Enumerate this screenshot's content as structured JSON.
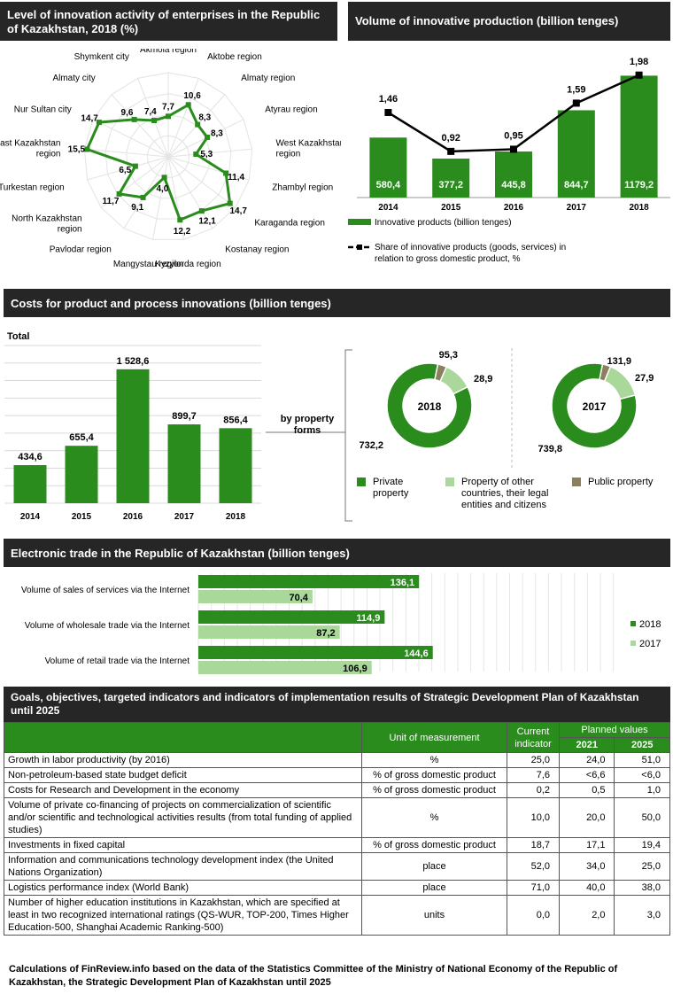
{
  "headers": {
    "innovation_activity": "Level of innovation activity of enterprises  in the Republic of Kazakhstan, 2018 (%)",
    "innovative_production": "Volume of innovative production (billion tenges)",
    "costs": "Costs  for product and process  innovations (billion tenges)",
    "etrade": "Electronic trade in the Republic of Kazakhstan (billion tenges)",
    "goals": "Goals, objectives, targeted indicators and indicators of implementation results of Strategic Development Plan of Kazakhstan until 2025"
  },
  "colors": {
    "green": "#2a8c1c",
    "light_green": "#a9d89a",
    "brown": "#8a8060",
    "dark": "#262626"
  },
  "chart_data": [
    {
      "type": "radar",
      "title": "Level of innovation activity of enterprises  in the Republic of Kazakhstan, 2018 (%)",
      "categories": [
        "Akmola region",
        "Aktobe region",
        "Almaty region",
        "Atyrau region",
        "West Kazakhstan region",
        "Zhambyl region",
        "Karaganda region",
        "Kostanay region",
        "Kyzylorda region",
        "Mangystau region",
        "Pavlodar region",
        "North Kazakhstan region",
        "Turkestan region",
        "East Kazakhstan region",
        "Nur Sultan city",
        "Almaty city",
        "Shymkent city"
      ],
      "values": [
        7.7,
        10.6,
        8.3,
        8.3,
        5.3,
        11.4,
        14.7,
        12.1,
        12.2,
        4.0,
        9.1,
        11.7,
        6.5,
        15.5,
        14.7,
        9.6,
        7.4
      ],
      "value_labels": [
        "7,7",
        "10,6",
        "8,3",
        "8,3",
        "5,3",
        "11,4",
        "14,7",
        "12,1",
        "12,2",
        "4,0",
        "9,1",
        "11,7",
        "6,5",
        "15,5",
        "14,7",
        "9,6",
        "7,4"
      ]
    },
    {
      "type": "bar+line",
      "title": "Volume of innovative production (billion tenges)",
      "categories": [
        "2014",
        "2015",
        "2016",
        "2017",
        "2018"
      ],
      "series": [
        {
          "name": "Innovative products (billion tenges)",
          "values": [
            580.4,
            377.2,
            445.8,
            844.7,
            1179.2
          ],
          "labels": [
            "580,4",
            "377,2",
            "445,8",
            "844,7",
            "1179,2"
          ]
        },
        {
          "name": "Share of innovative products (goods, services) in relation to gross domestic product, %",
          "values": [
            1.46,
            0.92,
            0.95,
            1.59,
            1.98
          ],
          "labels": [
            "1,46",
            "0,92",
            "0,95",
            "1,59",
            "1,98"
          ]
        }
      ]
    },
    {
      "type": "bar",
      "title": "Total",
      "categories": [
        "2014",
        "2015",
        "2016",
        "2017",
        "2018"
      ],
      "values": [
        434.6,
        655.4,
        1528.6,
        899.7,
        856.4
      ],
      "labels": [
        "434,6",
        "655,4",
        "1 528,6",
        "899,7",
        "856,4"
      ],
      "grid": true
    },
    {
      "type": "pie",
      "title": "by property forms",
      "center_label": "2018",
      "slices": [
        {
          "name": "Private property",
          "value": 732.2,
          "label": "732,2"
        },
        {
          "name": "Property of other countries, their legal entities and citizens",
          "value": 95.3,
          "label": "95,3"
        },
        {
          "name": "Public property",
          "value": 28.9,
          "label": "28,9"
        }
      ]
    },
    {
      "type": "pie",
      "center_label": "2017",
      "slices": [
        {
          "name": "Private property",
          "value": 739.8,
          "label": "739,8"
        },
        {
          "name": "Property of other countries, their legal entities and citizens",
          "value": 131.9,
          "label": "131,9"
        },
        {
          "name": "Public property",
          "value": 27.9,
          "label": "27,9"
        }
      ]
    },
    {
      "type": "bar",
      "orientation": "horizontal",
      "title": "Electronic trade in the Republic of Kazakhstan (billion tenges)",
      "categories": [
        "Volume of sales of services via the Internet",
        "Volume of wholesale trade via the Internet",
        "Volume of retail trade via the Internet"
      ],
      "series": [
        {
          "name": "2018",
          "values": [
            136.1,
            114.9,
            144.6
          ],
          "labels": [
            "136,1",
            "114,9",
            "144,6"
          ]
        },
        {
          "name": "2017",
          "values": [
            70.4,
            87.2,
            106.9
          ],
          "labels": [
            "70,4",
            "87,2",
            "106,9"
          ]
        }
      ],
      "legend": "right"
    }
  ],
  "costs_side_labels": {
    "property_label": "by property\nforms"
  },
  "table": {
    "col_unit": "Unit of measurement",
    "col_current": "Current indicator",
    "col_planned": "Planned values",
    "col_2021": "2021",
    "col_2025": "2025",
    "rows": [
      {
        "name": "Growth in labor productivity (by 2016)",
        "unit": "%",
        "current": "25,0",
        "y2021": "24,0",
        "y2025": "51,0"
      },
      {
        "name": "Non-petroleum-based state budget deficit",
        "unit": "% of gross domestic product",
        "current": "7,6",
        "y2021": "<6,6",
        "y2025": "<6,0"
      },
      {
        "name": "Costs for Research and Development in the economy",
        "unit": "% of gross domestic product",
        "current": "0,2",
        "y2021": "0,5",
        "y2025": "1,0"
      },
      {
        "name": "Volume of private co-financing of projects on commercialization of scientific and/or scientific and technological activities results (from total funding of applied studies)",
        "unit": "%",
        "current": "10,0",
        "y2021": "20,0",
        "y2025": "50,0"
      },
      {
        "name": "Investments in fixed capital",
        "unit": "% of gross domestic product",
        "current": "18,7",
        "y2021": "17,1",
        "y2025": "19,4"
      },
      {
        "name": "Information and communications technology development index (the United Nations Organization)",
        "unit": "place",
        "current": "52,0",
        "y2021": "34,0",
        "y2025": "25,0"
      },
      {
        "name": "Logistics performance index (World Bank)",
        "unit": "place",
        "current": "71,0",
        "y2021": "40,0",
        "y2025": "38,0"
      },
      {
        "name": "Number of higher education institutions in Kazakhstan, which are specified at least in two recognized international ratings (QS-WUR, TOP-200, Times Higher Education-500, Shanghai Academic Ranking-500)",
        "unit": "units",
        "current": "0,0",
        "y2021": "2,0",
        "y2025": "3,0"
      }
    ]
  },
  "footer": "Calculations of FinReview.info based on the data of the Statistics Committee of the Ministry of National Economy of the Republic of Kazakhstan, the Strategic Development Plan of Kazakhstan until 2025"
}
